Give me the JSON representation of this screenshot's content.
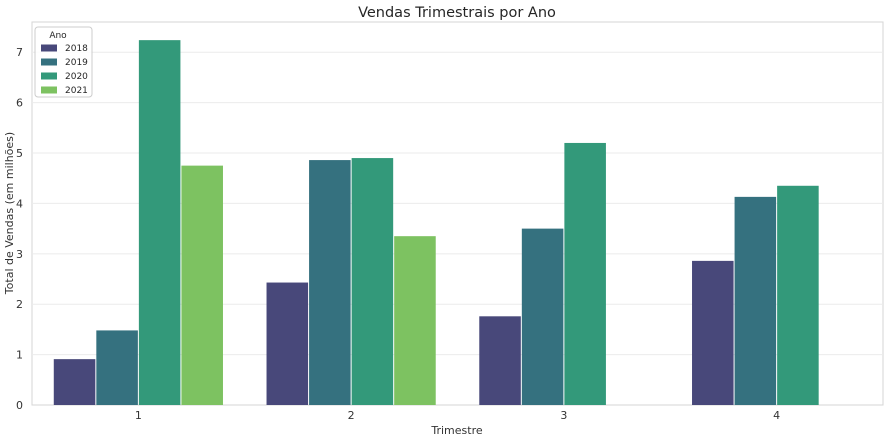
{
  "chart_data": {
    "type": "bar",
    "title": "Vendas Trimestrais por Ano",
    "xlabel": "Trimestre",
    "ylabel": "Total de Vendas (em milhões)",
    "categories": [
      "1",
      "2",
      "3",
      "4"
    ],
    "ylim": [
      0,
      7.6
    ],
    "yticks": [
      0,
      1,
      2,
      3,
      4,
      5,
      6,
      7
    ],
    "grid": true,
    "legend": {
      "title": "Ano",
      "placement": "top-left"
    },
    "series": [
      {
        "name": "2018",
        "color": "#48487a",
        "values": [
          0.91,
          2.43,
          1.76,
          2.86
        ]
      },
      {
        "name": "2019",
        "color": "#35717f",
        "values": [
          1.48,
          4.86,
          3.5,
          4.13
        ]
      },
      {
        "name": "2020",
        "color": "#33997a",
        "values": [
          7.24,
          4.9,
          5.2,
          4.35
        ]
      },
      {
        "name": "2021",
        "color": "#7dc261",
        "values": [
          4.75,
          3.35,
          null,
          null
        ]
      }
    ]
  }
}
